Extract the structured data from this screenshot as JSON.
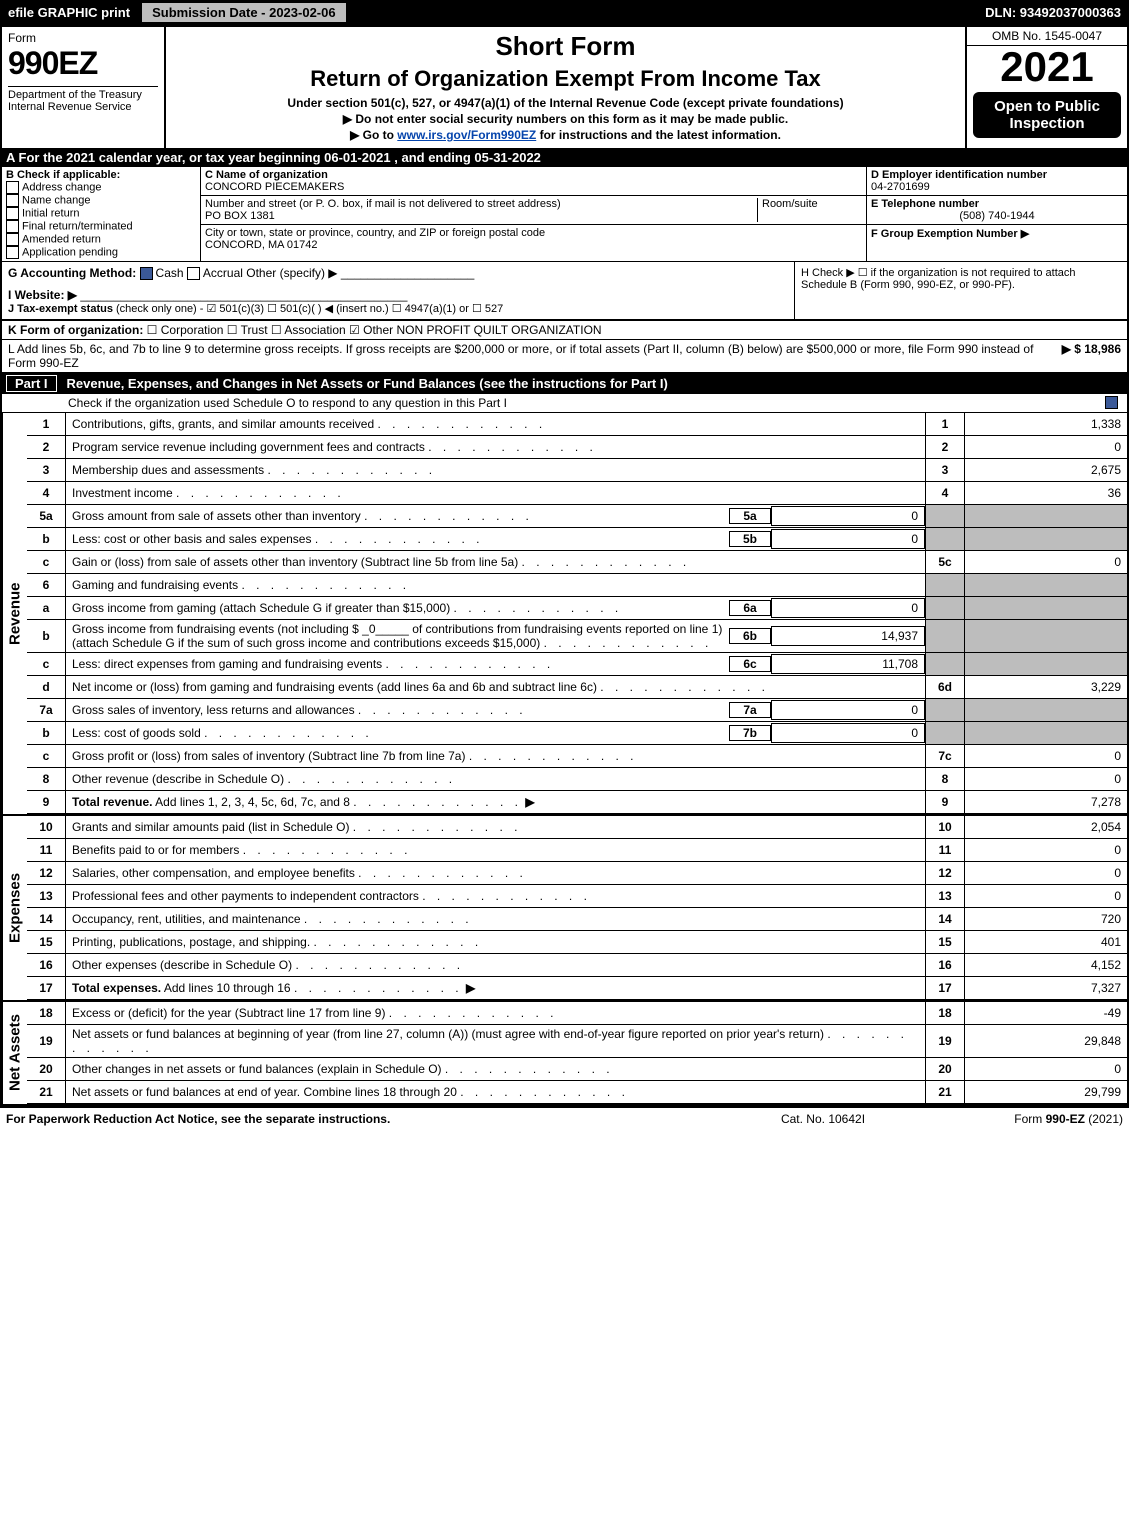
{
  "topbar": {
    "efile": "efile GRAPHIC print",
    "submission": "Submission Date - 2023-02-06",
    "dln": "DLN: 93492037000363"
  },
  "header": {
    "form_word": "Form",
    "form_num": "990EZ",
    "dept1": "Department of the Treasury",
    "dept2": "Internal Revenue Service",
    "short_form": "Short Form",
    "title": "Return of Organization Exempt From Income Tax",
    "subtitle": "Under section 501(c), 527, or 4947(a)(1) of the Internal Revenue Code (except private foundations)",
    "note1": "▶ Do not enter social security numbers on this form as it may be made public.",
    "note2_pre": "▶ Go to ",
    "note2_link": "www.irs.gov/Form990EZ",
    "note2_post": " for instructions and the latest information.",
    "omb": "OMB No. 1545-0047",
    "year": "2021",
    "open": "Open to Public Inspection"
  },
  "sectionA": "A  For the 2021 calendar year, or tax year beginning 06-01-2021 , and ending 05-31-2022",
  "boxB": {
    "label": "B  Check if applicable:",
    "opts": [
      "Address change",
      "Name change",
      "Initial return",
      "Final return/terminated",
      "Amended return",
      "Application pending"
    ]
  },
  "boxC": {
    "label": "C Name of organization",
    "name": "CONCORD PIECEMAKERS",
    "street_label": "Number and street (or P. O. box, if mail is not delivered to street address)",
    "room_label": "Room/suite",
    "street": "PO BOX 1381",
    "city_label": "City or town, state or province, country, and ZIP or foreign postal code",
    "city": "CONCORD, MA  01742"
  },
  "boxD": {
    "label": "D Employer identification number",
    "value": "04-2701699"
  },
  "boxE": {
    "label": "E Telephone number",
    "value": "(508) 740-1944"
  },
  "boxF": {
    "label": "F Group Exemption Number  ▶"
  },
  "boxG": {
    "label": "G Accounting Method:",
    "cash": "Cash",
    "accrual": "Accrual",
    "other": "Other (specify) ▶"
  },
  "boxH": {
    "label": "H  Check ▶ ☐ if the organization is not required to attach Schedule B (Form 990, 990-EZ, or 990-PF)."
  },
  "boxI": {
    "label": "I Website: ▶"
  },
  "boxJ": {
    "label": "J Tax-exempt status",
    "text": "(check only one) - ☑ 501(c)(3) ☐ 501(c)(  ) ◀ (insert no.) ☐ 4947(a)(1) or ☐ 527"
  },
  "boxK": {
    "label": "K Form of organization:",
    "text": "☐ Corporation  ☐ Trust  ☐ Association  ☑ Other NON PROFIT QUILT ORGANIZATION"
  },
  "boxL": {
    "text": "L Add lines 5b, 6c, and 7b to line 9 to determine gross receipts. If gross receipts are $200,000 or more, or if total assets (Part II, column (B) below) are $500,000 or more, file Form 990 instead of Form 990-EZ",
    "arrow": "▶ $ 18,986"
  },
  "part1": {
    "header_label": "Part I",
    "header_text": "Revenue, Expenses, and Changes in Net Assets or Fund Balances (see the instructions for Part I)",
    "check_text": "Check if the organization used Schedule O to respond to any question in this Part I"
  },
  "revenue_label": "Revenue",
  "expenses_label": "Expenses",
  "netassets_label": "Net Assets",
  "lines": {
    "l1": {
      "num": "1",
      "desc": "Contributions, gifts, grants, and similar amounts received",
      "box": "1",
      "val": "1,338"
    },
    "l2": {
      "num": "2",
      "desc": "Program service revenue including government fees and contracts",
      "box": "2",
      "val": "0"
    },
    "l3": {
      "num": "3",
      "desc": "Membership dues and assessments",
      "box": "3",
      "val": "2,675"
    },
    "l4": {
      "num": "4",
      "desc": "Investment income",
      "box": "4",
      "val": "36"
    },
    "l5a": {
      "num": "5a",
      "desc": "Gross amount from sale of assets other than inventory",
      "sub": "5a",
      "subval": "0"
    },
    "l5b": {
      "num": "b",
      "desc": "Less: cost or other basis and sales expenses",
      "sub": "5b",
      "subval": "0"
    },
    "l5c": {
      "num": "c",
      "desc": "Gain or (loss) from sale of assets other than inventory (Subtract line 5b from line 5a)",
      "box": "5c",
      "val": "0"
    },
    "l6": {
      "num": "6",
      "desc": "Gaming and fundraising events"
    },
    "l6a": {
      "num": "a",
      "desc": "Gross income from gaming (attach Schedule G if greater than $15,000)",
      "sub": "6a",
      "subval": "0"
    },
    "l6b": {
      "num": "b",
      "desc": "Gross income from fundraising events (not including $ _0_____ of contributions from fundraising events reported on line 1) (attach Schedule G if the sum of such gross income and contributions exceeds $15,000)",
      "sub": "6b",
      "subval": "14,937"
    },
    "l6c": {
      "num": "c",
      "desc": "Less: direct expenses from gaming and fundraising events",
      "sub": "6c",
      "subval": "11,708"
    },
    "l6d": {
      "num": "d",
      "desc": "Net income or (loss) from gaming and fundraising events (add lines 6a and 6b and subtract line 6c)",
      "box": "6d",
      "val": "3,229"
    },
    "l7a": {
      "num": "7a",
      "desc": "Gross sales of inventory, less returns and allowances",
      "sub": "7a",
      "subval": "0"
    },
    "l7b": {
      "num": "b",
      "desc": "Less: cost of goods sold",
      "sub": "7b",
      "subval": "0"
    },
    "l7c": {
      "num": "c",
      "desc": "Gross profit or (loss) from sales of inventory (Subtract line 7b from line 7a)",
      "box": "7c",
      "val": "0"
    },
    "l8": {
      "num": "8",
      "desc": "Other revenue (describe in Schedule O)",
      "box": "8",
      "val": "0"
    },
    "l9": {
      "num": "9",
      "desc": "Total revenue. Add lines 1, 2, 3, 4, 5c, 6d, 7c, and 8",
      "box": "9",
      "val": "7,278",
      "arrow": "▶"
    },
    "l10": {
      "num": "10",
      "desc": "Grants and similar amounts paid (list in Schedule O)",
      "box": "10",
      "val": "2,054"
    },
    "l11": {
      "num": "11",
      "desc": "Benefits paid to or for members",
      "box": "11",
      "val": "0"
    },
    "l12": {
      "num": "12",
      "desc": "Salaries, other compensation, and employee benefits",
      "box": "12",
      "val": "0"
    },
    "l13": {
      "num": "13",
      "desc": "Professional fees and other payments to independent contractors",
      "box": "13",
      "val": "0"
    },
    "l14": {
      "num": "14",
      "desc": "Occupancy, rent, utilities, and maintenance",
      "box": "14",
      "val": "720"
    },
    "l15": {
      "num": "15",
      "desc": "Printing, publications, postage, and shipping.",
      "box": "15",
      "val": "401"
    },
    "l16": {
      "num": "16",
      "desc": "Other expenses (describe in Schedule O)",
      "box": "16",
      "val": "4,152"
    },
    "l17": {
      "num": "17",
      "desc": "Total expenses. Add lines 10 through 16",
      "box": "17",
      "val": "7,327",
      "arrow": "▶"
    },
    "l18": {
      "num": "18",
      "desc": "Excess or (deficit) for the year (Subtract line 17 from line 9)",
      "box": "18",
      "val": "-49"
    },
    "l19": {
      "num": "19",
      "desc": "Net assets or fund balances at beginning of year (from line 27, column (A)) (must agree with end-of-year figure reported on prior year's return)",
      "box": "19",
      "val": "29,848"
    },
    "l20": {
      "num": "20",
      "desc": "Other changes in net assets or fund balances (explain in Schedule O)",
      "box": "20",
      "val": "0"
    },
    "l21": {
      "num": "21",
      "desc": "Net assets or fund balances at end of year. Combine lines 18 through 20",
      "box": "21",
      "val": "29,799"
    }
  },
  "footer": {
    "left": "For Paperwork Reduction Act Notice, see the separate instructions.",
    "center": "Cat. No. 10642I",
    "right": "Form 990-EZ (2021)"
  }
}
